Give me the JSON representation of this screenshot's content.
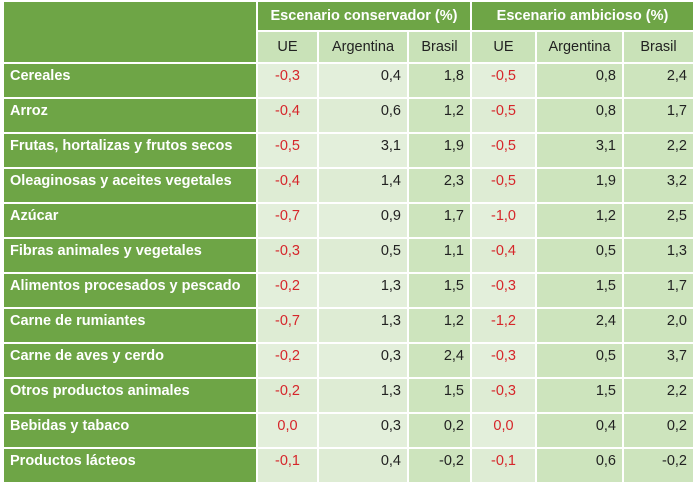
{
  "header": {
    "groups": [
      "Escenario conservador (%)",
      "Escenario ambicioso (%)"
    ],
    "columns": [
      "UE",
      "Argentina",
      "Brasil",
      "UE",
      "Argentina",
      "Brasil"
    ]
  },
  "colors": {
    "header_green": "#6ea546",
    "negative_red": "#d6262a",
    "cell_light": "#e3efdb",
    "cell_medium": "#cde4bd"
  },
  "rows": [
    {
      "label": "Cereales",
      "values": [
        "-0,3",
        "0,4",
        "1,8",
        "-0,5",
        "0,8",
        "2,4"
      ]
    },
    {
      "label": "Arroz",
      "values": [
        "-0,4",
        "0,6",
        "1,2",
        "-0,5",
        "0,8",
        "1,7"
      ]
    },
    {
      "label": "Frutas, hortalizas y frutos secos",
      "values": [
        "-0,5",
        "3,1",
        "1,9",
        "-0,5",
        "3,1",
        "2,2"
      ]
    },
    {
      "label": "Oleaginosas y aceites vegetales",
      "values": [
        "-0,4",
        "1,4",
        "2,3",
        "-0,5",
        "1,9",
        "3,2"
      ]
    },
    {
      "label": "Azúcar",
      "values": [
        "-0,7",
        "0,9",
        "1,7",
        "-1,0",
        "1,2",
        "2,5"
      ]
    },
    {
      "label": "Fibras animales y vegetales",
      "values": [
        "-0,3",
        "0,5",
        "1,1",
        "-0,4",
        "0,5",
        "1,3"
      ]
    },
    {
      "label": "Alimentos procesados y pescado",
      "values": [
        "-0,2",
        "1,3",
        "1,5",
        "-0,3",
        "1,5",
        "1,7"
      ]
    },
    {
      "label": "Carne de rumiantes",
      "values": [
        "-0,7",
        "1,3",
        "1,2",
        "-1,2",
        "2,4",
        "2,0"
      ]
    },
    {
      "label": "Carne de aves y cerdo",
      "values": [
        "-0,2",
        "0,3",
        "2,4",
        "-0,3",
        "0,5",
        "3,7"
      ]
    },
    {
      "label": "Otros productos animales",
      "values": [
        "-0,2",
        "1,3",
        "1,5",
        "-0,3",
        "1,5",
        "2,2"
      ]
    },
    {
      "label": "Bebidas y tabaco",
      "values": [
        "0,0",
        "0,3",
        "0,2",
        "0,0",
        "0,4",
        "0,2"
      ]
    },
    {
      "label": "Productos lácteos",
      "values": [
        "-0,1",
        "0,4",
        "-0,2",
        "-0,1",
        "0,6",
        "-0,2"
      ]
    }
  ]
}
